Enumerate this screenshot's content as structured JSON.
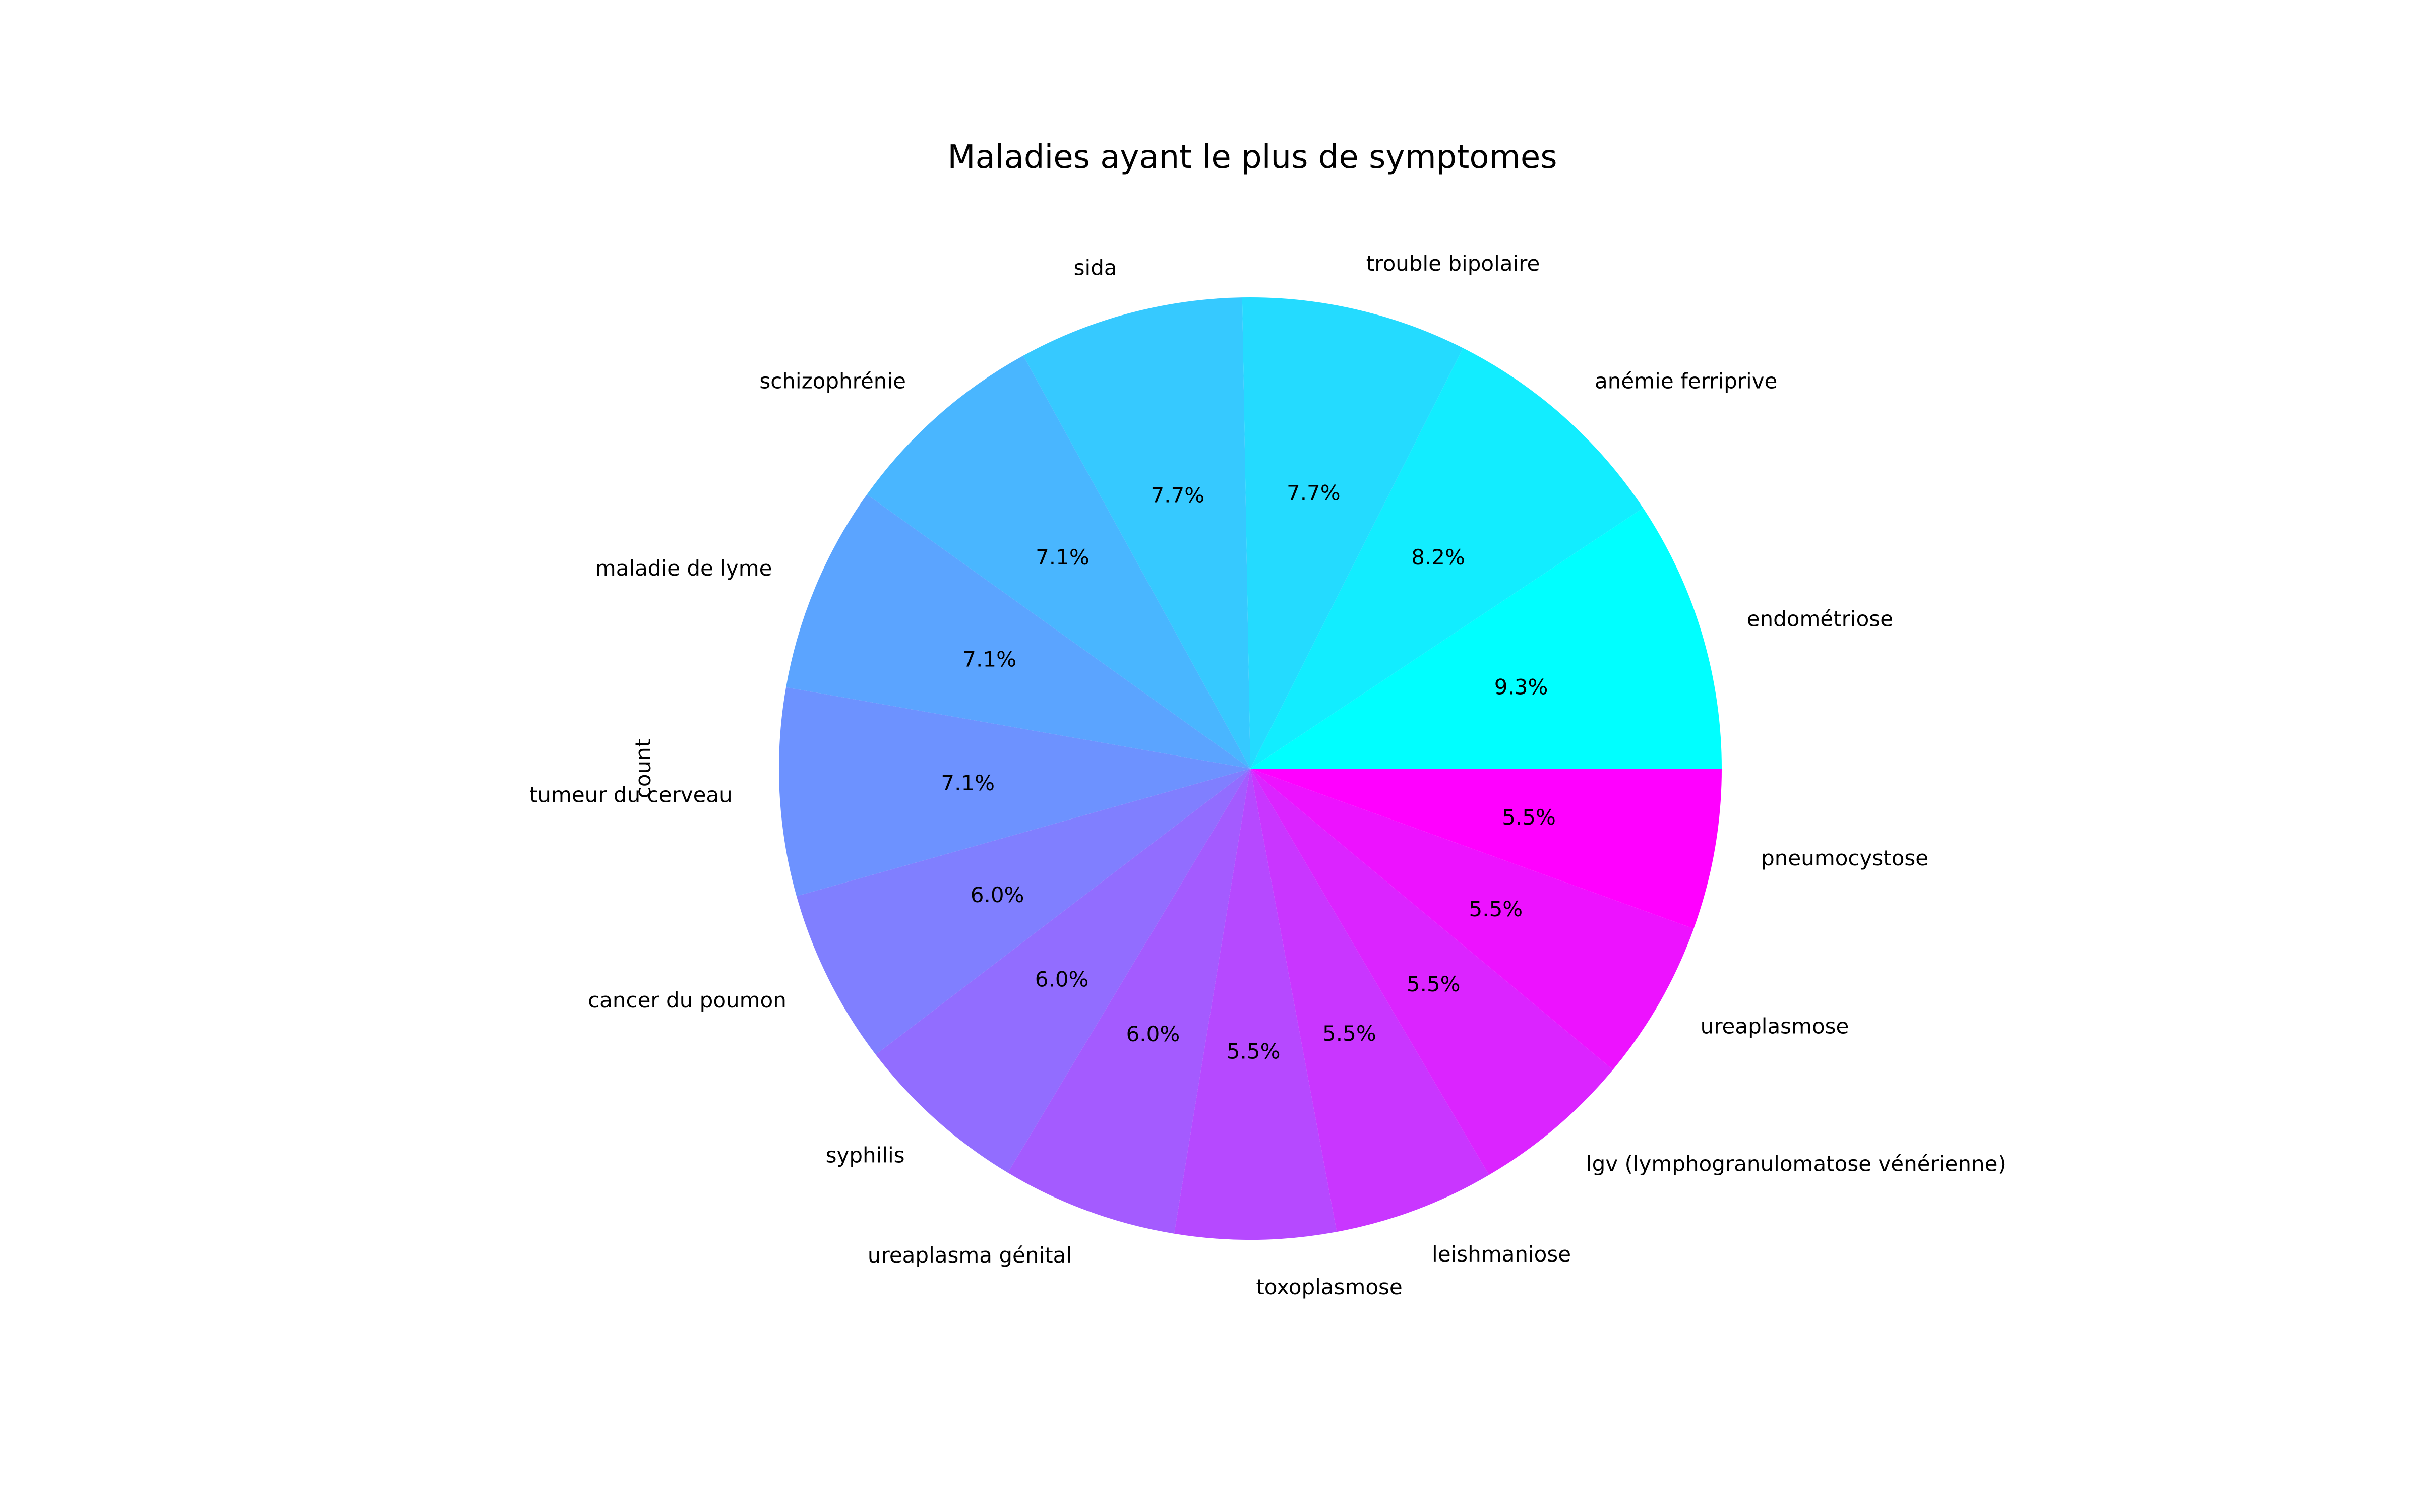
{
  "chart_data": {
    "type": "pie",
    "title": "Maladies ayant le plus de symptomes",
    "ylabel": "count",
    "start_angle_deg": 0,
    "direction": "counterclockwise",
    "colormap": "cool",
    "slices": [
      {
        "label": "endométriose",
        "value": 9.3,
        "pct_label": "9.3%",
        "color": "#00ffff"
      },
      {
        "label": "anémie ferriprive",
        "value": 8.2,
        "pct_label": "8.2%",
        "color": "#12edff"
      },
      {
        "label": "trouble bipolaire",
        "value": 7.7,
        "pct_label": "7.7%",
        "color": "#24dbff"
      },
      {
        "label": "sida",
        "value": 7.7,
        "pct_label": "7.7%",
        "color": "#36c9ff"
      },
      {
        "label": "schizophrénie",
        "value": 7.1,
        "pct_label": "7.1%",
        "color": "#49b6ff"
      },
      {
        "label": "maladie de lyme",
        "value": 7.1,
        "pct_label": "7.1%",
        "color": "#5ba4ff"
      },
      {
        "label": "tumeur du cerveau",
        "value": 7.1,
        "pct_label": "7.1%",
        "color": "#6d92ff"
      },
      {
        "label": "cancer du poumon",
        "value": 6.0,
        "pct_label": "6.0%",
        "color": "#807fff"
      },
      {
        "label": "syphilis",
        "value": 6.0,
        "pct_label": "6.0%",
        "color": "#926dff"
      },
      {
        "label": "ureaplasma génital",
        "value": 6.0,
        "pct_label": "6.0%",
        "color": "#a45bff"
      },
      {
        "label": "toxoplasmose",
        "value": 5.5,
        "pct_label": "5.5%",
        "color": "#b649ff"
      },
      {
        "label": "leishmaniose",
        "value": 5.5,
        "pct_label": "5.5%",
        "color": "#c936ff"
      },
      {
        "label": "lgv (lymphogranulomatose vénérienne)",
        "value": 5.5,
        "pct_label": "5.5%",
        "color": "#db24ff"
      },
      {
        "label": "ureaplasmose",
        "value": 5.5,
        "pct_label": "5.5%",
        "color": "#ed12ff"
      },
      {
        "label": "pneumocystose",
        "value": 5.5,
        "pct_label": "5.5%",
        "color": "#ff00ff"
      }
    ]
  }
}
